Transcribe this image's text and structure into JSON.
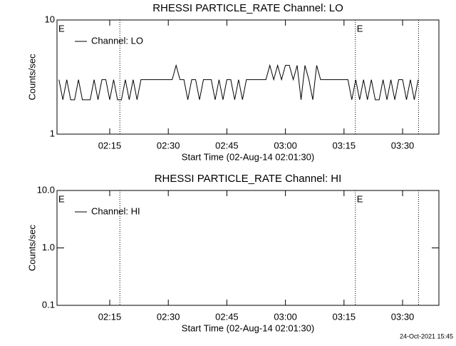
{
  "chart_data": [
    {
      "type": "line",
      "title": "RHESSI PARTICLE_RATE Channel: LO",
      "xlabel": "Start Time (02-Aug-14 02:01:30)",
      "ylabel": "Counts/sec",
      "log_y": true,
      "legend": "upper left",
      "xlim": [
        121.5,
        219.3
      ],
      "xticks": [
        {
          "value": 135,
          "label": "02:15"
        },
        {
          "value": 150,
          "label": "02:30"
        },
        {
          "value": 165,
          "label": "02:45"
        },
        {
          "value": 180,
          "label": "03:00"
        },
        {
          "value": 195,
          "label": "03:15"
        },
        {
          "value": 210,
          "label": "03:30"
        }
      ],
      "ylim": [
        1,
        10
      ],
      "yticks": [
        1,
        10
      ],
      "event_lines": [
        137.6,
        197.9,
        214.1
      ],
      "annotations": [
        {
          "text": "E",
          "x": 121.5
        },
        {
          "text": "E",
          "x": 197.9
        }
      ],
      "x": [
        122,
        123,
        124,
        125,
        126,
        127,
        128,
        129,
        130,
        131,
        132,
        133,
        134,
        135,
        136,
        137,
        138,
        139,
        140,
        141,
        142,
        143,
        144,
        145,
        146,
        147,
        148,
        149,
        150,
        151,
        152,
        153,
        154,
        155,
        156,
        157,
        158,
        159,
        160,
        161,
        162,
        163,
        164,
        165,
        166,
        167,
        168,
        169,
        170,
        171,
        172,
        173,
        174,
        175,
        176,
        177,
        178,
        179,
        180,
        181,
        182,
        183,
        184,
        185,
        186,
        187,
        188,
        189,
        190,
        191,
        192,
        193,
        194,
        195,
        196,
        197,
        198,
        199,
        200,
        201,
        202,
        203,
        204,
        205,
        206,
        207,
        208,
        209,
        210,
        211,
        212,
        213,
        214
      ],
      "series": [
        {
          "name": "Channel: LO",
          "color": "#000000",
          "values": [
            3,
            2,
            3,
            2,
            2,
            3,
            2,
            2,
            2,
            3,
            2,
            3,
            3,
            2,
            3,
            2,
            2,
            3,
            2,
            3,
            2,
            3,
            3,
            3,
            3,
            3,
            3,
            3,
            3,
            3,
            4,
            3,
            3,
            2,
            3,
            3,
            2,
            3,
            3,
            3,
            2,
            3,
            2,
            3,
            3,
            2,
            3,
            2,
            3,
            3,
            3,
            3,
            3,
            3,
            4,
            3,
            4,
            3,
            4,
            4,
            3,
            4,
            2,
            4,
            3,
            2,
            4,
            3,
            3,
            3,
            3,
            3,
            3,
            3,
            3,
            2,
            3,
            2,
            3,
            2,
            3,
            2,
            2,
            3,
            2,
            3,
            2,
            3,
            3,
            2,
            3,
            2,
            3
          ]
        }
      ]
    },
    {
      "type": "line",
      "title": "RHESSI PARTICLE_RATE Channel: HI",
      "xlabel": "Start Time (02-Aug-14 02:01:30)",
      "ylabel": "Counts/sec",
      "log_y": true,
      "legend": "upper left",
      "xlim": [
        121.5,
        219.3
      ],
      "xticks": [
        {
          "value": 135,
          "label": "02:15"
        },
        {
          "value": 150,
          "label": "02:30"
        },
        {
          "value": 165,
          "label": "02:45"
        },
        {
          "value": 180,
          "label": "03:00"
        },
        {
          "value": 195,
          "label": "03:15"
        },
        {
          "value": 210,
          "label": "03:30"
        }
      ],
      "ylim": [
        0.1,
        10
      ],
      "yticks": [
        0.1,
        {
          "value": 1,
          "label": "1.0"
        },
        {
          "value": 10,
          "label": "10.0"
        }
      ],
      "event_lines": [
        137.6,
        197.9,
        214.1
      ],
      "annotations": [
        {
          "text": "E",
          "x": 121.5
        },
        {
          "text": "E",
          "x": 197.9
        }
      ],
      "x": [],
      "series": [
        {
          "name": "Channel: HI",
          "color": "#000000",
          "values": []
        }
      ]
    }
  ],
  "footer": "24-Oct-2021 15:45"
}
